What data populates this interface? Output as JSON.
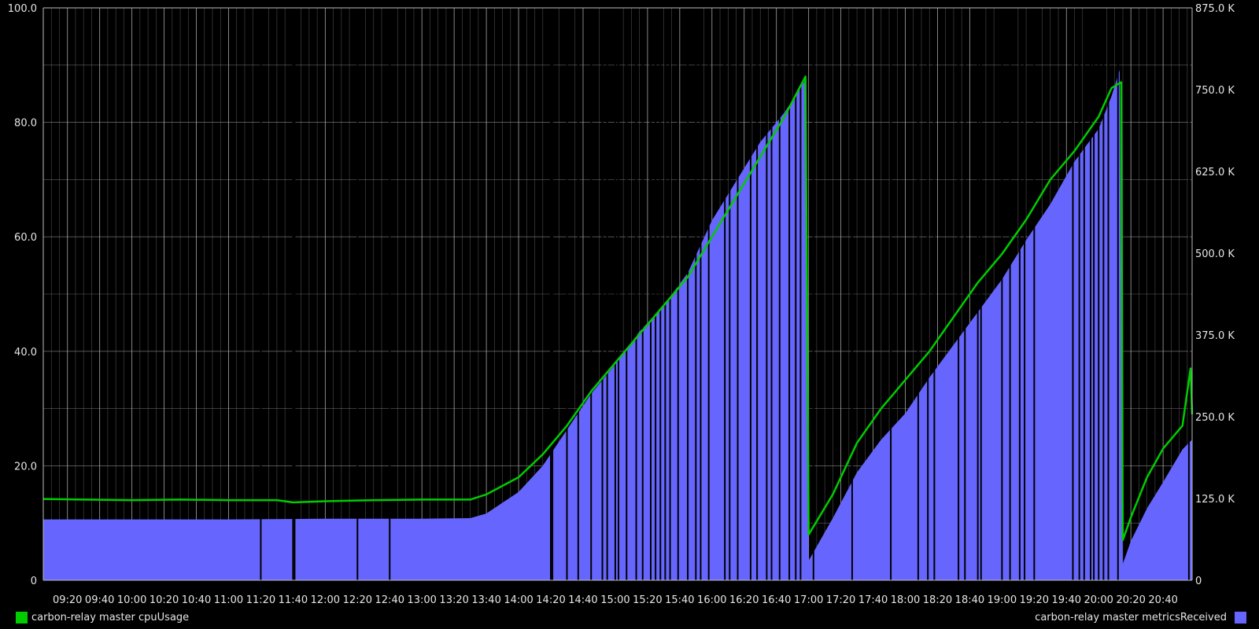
{
  "chart_data": {
    "type": "line",
    "colors": {
      "background": "#000000",
      "grid": "#8a8a8a",
      "axis_text": "#e6e6e6",
      "cpu": "#00cc00",
      "metrics": "#6666ff"
    },
    "grid": true,
    "x_axis": {
      "unit": "time",
      "range": [
        "09:05",
        "20:58"
      ],
      "tick_labels": [
        "09:20",
        "09:40",
        "10:00",
        "10:20",
        "10:40",
        "11:00",
        "11:20",
        "11:40",
        "12:00",
        "12:20",
        "12:40",
        "13:00",
        "13:20",
        "13:40",
        "14:00",
        "14:20",
        "14:40",
        "15:00",
        "15:20",
        "15:40",
        "16:00",
        "16:20",
        "16:40",
        "17:00",
        "17:20",
        "17:40",
        "18:00",
        "18:20",
        "18:40",
        "19:00",
        "19:20",
        "19:40",
        "20:00",
        "20:20",
        "20:40"
      ]
    },
    "y_axis_left": {
      "ylim": [
        0,
        100
      ],
      "tick_labels": [
        "0",
        "20.0",
        "40.0",
        "60.0",
        "80.0",
        "100.0"
      ]
    },
    "y_axis_right": {
      "ylim": [
        0,
        875000
      ],
      "tick_labels": [
        "0",
        "125.0 K",
        "250.0 K",
        "375.0 K",
        "500.0 K",
        "625.0 K",
        "750.0 K",
        "875.0 K"
      ]
    },
    "legend": {
      "left": {
        "label": "carbon-relay master cpuUsage",
        "color": "#00cc00"
      },
      "right": {
        "label": "carbon-relay master metricsReceived",
        "color": "#6666ff"
      }
    },
    "series": [
      {
        "name": "carbon-relay master cpuUsage",
        "axis": "left",
        "color": "#00cc00",
        "points": [
          [
            "09:05",
            14.2
          ],
          [
            "09:30",
            14.1
          ],
          [
            "10:00",
            14.0
          ],
          [
            "10:30",
            14.1
          ],
          [
            "11:00",
            14.0
          ],
          [
            "11:30",
            14.0
          ],
          [
            "11:40",
            13.6
          ],
          [
            "12:00",
            13.8
          ],
          [
            "12:30",
            14.0
          ],
          [
            "13:00",
            14.1
          ],
          [
            "13:30",
            14.1
          ],
          [
            "13:40",
            15.0
          ],
          [
            "14:00",
            18.0
          ],
          [
            "14:15",
            22.0
          ],
          [
            "14:30",
            27.0
          ],
          [
            "14:45",
            33.0
          ],
          [
            "15:00",
            38.0
          ],
          [
            "15:15",
            43.0
          ],
          [
            "15:30",
            48.0
          ],
          [
            "15:45",
            53.0
          ],
          [
            "16:00",
            60.0
          ],
          [
            "16:15",
            67.0
          ],
          [
            "16:30",
            74.0
          ],
          [
            "16:45",
            81.0
          ],
          [
            "16:58",
            88.0
          ],
          [
            "17:00",
            8.0
          ],
          [
            "17:15",
            15.0
          ],
          [
            "17:30",
            24.0
          ],
          [
            "17:45",
            30.0
          ],
          [
            "18:00",
            35.0
          ],
          [
            "18:15",
            40.0
          ],
          [
            "18:30",
            46.0
          ],
          [
            "18:45",
            52.0
          ],
          [
            "19:00",
            57.0
          ],
          [
            "19:15",
            63.0
          ],
          [
            "19:30",
            70.0
          ],
          [
            "19:45",
            75.0
          ],
          [
            "20:00",
            81.0
          ],
          [
            "20:08",
            86.0
          ],
          [
            "20:14",
            87.0
          ],
          [
            "20:15",
            7.0
          ],
          [
            "20:20",
            11.0
          ],
          [
            "20:30",
            18.0
          ],
          [
            "20:40",
            23.0
          ],
          [
            "20:52",
            27.0
          ],
          [
            "20:57",
            37.0
          ],
          [
            "20:58",
            29.0
          ]
        ]
      },
      {
        "name": "carbon-relay master metricsReceived",
        "axis": "right",
        "color": "#6666ff",
        "points": [
          [
            "09:05",
            93000
          ],
          [
            "09:30",
            93000
          ],
          [
            "10:00",
            93000
          ],
          [
            "11:00",
            93000
          ],
          [
            "12:00",
            94000
          ],
          [
            "13:00",
            94000
          ],
          [
            "13:30",
            95000
          ],
          [
            "13:40",
            102000
          ],
          [
            "14:00",
            135000
          ],
          [
            "14:15",
            175000
          ],
          [
            "14:30",
            230000
          ],
          [
            "14:45",
            285000
          ],
          [
            "15:00",
            330000
          ],
          [
            "15:15",
            380000
          ],
          [
            "15:30",
            420000
          ],
          [
            "15:45",
            470000
          ],
          [
            "16:00",
            550000
          ],
          [
            "16:15",
            610000
          ],
          [
            "16:30",
            670000
          ],
          [
            "16:45",
            715000
          ],
          [
            "16:58",
            765000
          ],
          [
            "17:00",
            30000
          ],
          [
            "17:15",
            95000
          ],
          [
            "17:30",
            165000
          ],
          [
            "17:45",
            215000
          ],
          [
            "18:00",
            255000
          ],
          [
            "18:15",
            310000
          ],
          [
            "18:30",
            360000
          ],
          [
            "18:45",
            410000
          ],
          [
            "19:00",
            460000
          ],
          [
            "19:15",
            520000
          ],
          [
            "19:30",
            575000
          ],
          [
            "19:45",
            640000
          ],
          [
            "20:00",
            690000
          ],
          [
            "20:08",
            740000
          ],
          [
            "20:13",
            780000
          ],
          [
            "20:15",
            25000
          ],
          [
            "20:20",
            60000
          ],
          [
            "20:30",
            110000
          ],
          [
            "20:40",
            150000
          ],
          [
            "20:52",
            200000
          ],
          [
            "20:58",
            215000
          ]
        ],
        "drops_to_zero_at": [
          "11:20",
          "11:40",
          "11:41",
          "12:20",
          "12:40",
          "14:20",
          "14:21",
          "14:30",
          "14:37",
          "14:45",
          "14:52",
          "14:55",
          "15:00",
          "15:02",
          "15:07",
          "15:13",
          "15:17",
          "15:22",
          "15:25",
          "15:28",
          "15:31",
          "15:34",
          "15:39",
          "15:45",
          "15:50",
          "15:53",
          "15:58",
          "16:08",
          "16:11",
          "16:16",
          "16:24",
          "16:28",
          "16:34",
          "16:37",
          "16:42",
          "16:48",
          "16:52",
          "16:55",
          "17:03",
          "17:27",
          "17:51",
          "18:08",
          "18:14",
          "18:18",
          "18:33",
          "18:37",
          "18:45",
          "18:47",
          "19:00",
          "19:05",
          "19:11",
          "19:14",
          "19:20",
          "19:44",
          "19:48",
          "19:51",
          "19:55",
          "19:57",
          "20:00",
          "20:03",
          "20:06",
          "20:12",
          "20:56"
        ]
      }
    ]
  }
}
